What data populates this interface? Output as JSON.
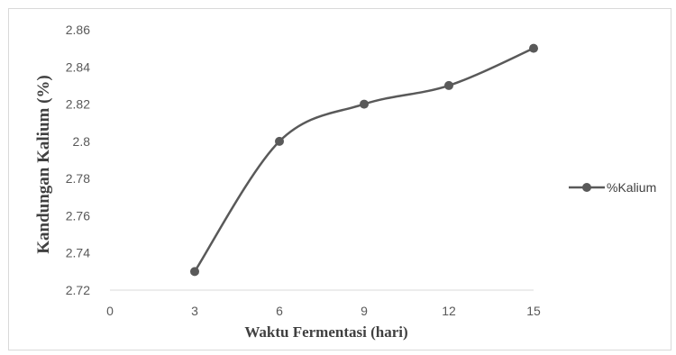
{
  "chart_data": {
    "type": "line",
    "title": "",
    "xlabel": "Waktu Fermentasi (hari)",
    "ylabel": "Kandungan Kalium (%)",
    "xlim": [
      0,
      15
    ],
    "ylim": [
      2.72,
      2.86
    ],
    "x_ticks": [
      "0",
      "3",
      "6",
      "9",
      "12",
      "15"
    ],
    "y_ticks": [
      "2.72",
      "2.74",
      "2.76",
      "2.78",
      "2.8",
      "2.82",
      "2.84",
      "2.86"
    ],
    "grid": false,
    "smooth": true,
    "legend_position": "right",
    "series": [
      {
        "name": "%Kalium",
        "color": "#595959",
        "x": [
          3,
          6,
          9,
          12,
          15
        ],
        "y": [
          2.73,
          2.8,
          2.82,
          2.83,
          2.85
        ]
      }
    ]
  }
}
